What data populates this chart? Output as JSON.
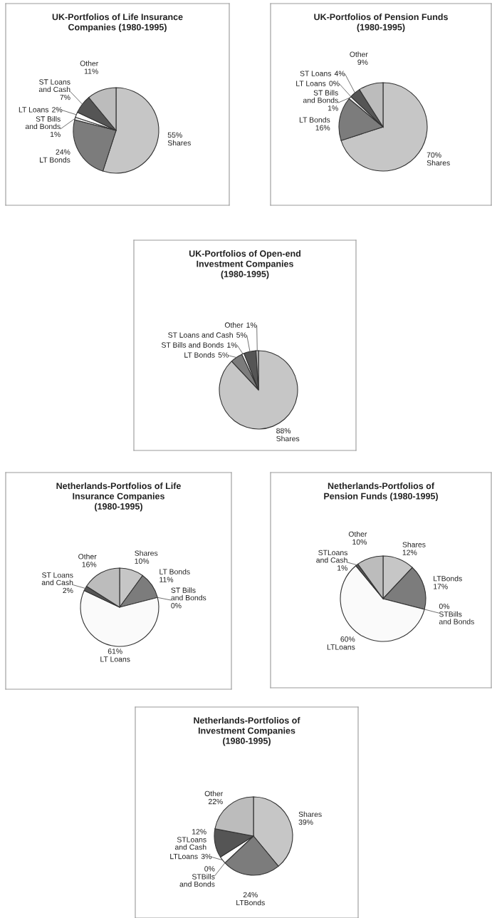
{
  "chart_data": [
    {
      "type": "pie",
      "title": "UK-Portfolios of Life Insurance\nCompanies (1980-1995)",
      "categories": [
        "Shares",
        "LT Bonds",
        "ST Bills\nand Bonds",
        "LT Loans",
        "ST Loans\nand Cash",
        "Other"
      ],
      "values": [
        55,
        24,
        1,
        2,
        7,
        11
      ],
      "value_labels": [
        "55%",
        "24%",
        "1%",
        "2%",
        "7%",
        "11%"
      ],
      "colors": [
        "#c6c6c6",
        "#7c7c7c",
        "#f4f4f4",
        "#ffffff",
        "#555555",
        "#bcbcbc"
      ]
    },
    {
      "type": "pie",
      "title": "UK-Portfolios of Pension Funds\n(1980-1995)",
      "categories": [
        "Shares",
        "LT Bonds",
        "ST Bills\nand Bonds",
        "LT Loans",
        "ST Loans",
        "Other"
      ],
      "values": [
        70,
        16,
        1,
        0,
        4,
        9
      ],
      "value_labels": [
        "70%",
        "16%",
        "1%",
        "0%",
        "4%",
        "9%"
      ],
      "colors": [
        "#c6c6c6",
        "#7c7c7c",
        "#f4f4f4",
        "#ffffff",
        "#555555",
        "#bcbcbc"
      ]
    },
    {
      "type": "pie",
      "title": "UK-Portfolios of Open-end\nInvestment Companies\n(1980-1995)",
      "categories": [
        "Shares",
        "LT Bonds",
        "ST Bills and Bonds",
        "ST Loans and Cash",
        "Other"
      ],
      "values": [
        88,
        5,
        1,
        5,
        1
      ],
      "value_labels": [
        "88%",
        "5%",
        "1%",
        "5%",
        "1%"
      ],
      "colors": [
        "#c6c6c6",
        "#7c7c7c",
        "#f4f4f4",
        "#555555",
        "#bcbcbc"
      ]
    },
    {
      "type": "pie",
      "title": "Netherlands-Portfolios of Life\nInsurance Companies\n(1980-1995)",
      "categories": [
        "Shares",
        "LT Bonds",
        "ST Bills\nand Bonds",
        "LT Loans",
        "ST Loans\nand Cash",
        "Other"
      ],
      "values": [
        10,
        11,
        0,
        61,
        2,
        16
      ],
      "value_labels": [
        "10%",
        "11%",
        "0%",
        "61%",
        "2%",
        "16%"
      ],
      "colors": [
        "#c6c6c6",
        "#7c7c7c",
        "#f4f4f4",
        "#fafafa",
        "#555555",
        "#bcbcbc"
      ]
    },
    {
      "type": "pie",
      "title": "Netherlands-Portfolios of\nPension Funds (1980-1995)",
      "categories": [
        "Shares",
        "LTBonds",
        "STBills\nand Bonds",
        "LTLoans",
        "STLoans\nand Cash",
        "Other"
      ],
      "values": [
        12,
        17,
        0,
        60,
        1,
        10
      ],
      "value_labels": [
        "12%",
        "17%",
        "0%",
        "60%",
        "1%",
        "10%"
      ],
      "colors": [
        "#c6c6c6",
        "#7c7c7c",
        "#f4f4f4",
        "#fafafa",
        "#555555",
        "#bcbcbc"
      ]
    },
    {
      "type": "pie",
      "title": "Netherlands-Portfolios of\nInvestment Companies\n(1980-1995)",
      "categories": [
        "Shares",
        "LTBonds",
        "STBills\nand Bonds",
        "LTLoans",
        "STLoans\nand Cash",
        "Other"
      ],
      "values": [
        39,
        24,
        0,
        3,
        12,
        22
      ],
      "value_labels": [
        "39%",
        "24%",
        "0%",
        "3%",
        "12%",
        "22%"
      ],
      "colors": [
        "#c6c6c6",
        "#7c7c7c",
        "#f4f4f4",
        "#ffffff",
        "#555555",
        "#bcbcbc"
      ]
    }
  ]
}
